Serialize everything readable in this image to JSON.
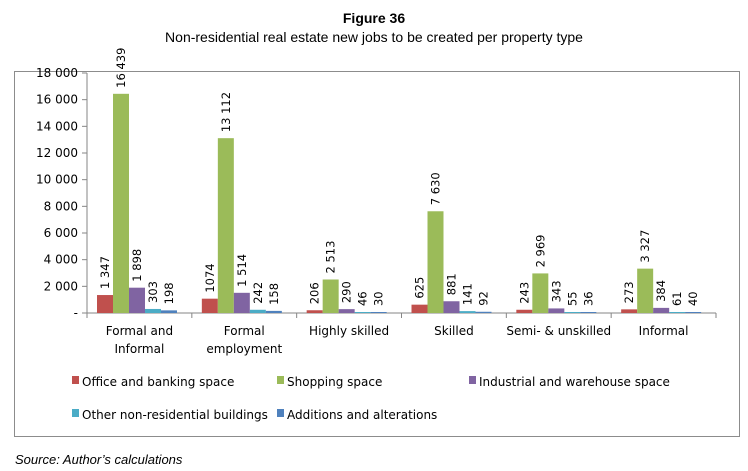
{
  "figure": {
    "number_label": "Figure 36",
    "source": "Source: Author’s calculations"
  },
  "chart_data": {
    "type": "bar",
    "title": "Non-residential real estate new jobs to be created per property type",
    "xlabel": "",
    "ylabel": "",
    "ylim": [
      0,
      18000
    ],
    "yticks": [
      0,
      2000,
      4000,
      6000,
      8000,
      10000,
      12000,
      14000,
      16000,
      18000
    ],
    "ytick_labels": [
      "-",
      "2 000",
      "4 000",
      "6 000",
      "8 000",
      "10 000",
      "12 000",
      "14 000",
      "16 000",
      "18 000"
    ],
    "grid": false,
    "legend_position": "bottom",
    "categories": [
      [
        "Formal and",
        "Informal"
      ],
      [
        "Formal",
        "employment"
      ],
      [
        "Highly skilled"
      ],
      [
        "Skilled"
      ],
      [
        "Semi- & unskilled"
      ],
      [
        "Informal"
      ]
    ],
    "series": [
      {
        "name": "Office and banking space",
        "color": "#c0504d",
        "values": [
          1347,
          1074,
          206,
          625,
          243,
          273
        ],
        "labels": [
          "1 347",
          "1074",
          "206",
          "625",
          "243",
          "273"
        ]
      },
      {
        "name": "Shopping space",
        "color": "#9bbb59",
        "values": [
          16439,
          13112,
          2513,
          7630,
          2969,
          3327
        ],
        "labels": [
          "16 439",
          "13 112",
          "2 513",
          "7 630",
          "2 969",
          "3 327"
        ]
      },
      {
        "name": "Industrial and warehouse space",
        "color": "#8064a2",
        "values": [
          1898,
          1514,
          290,
          881,
          343,
          384
        ],
        "labels": [
          "1 898",
          "1 514",
          "290",
          "881",
          "343",
          "384"
        ]
      },
      {
        "name": "Other non-residential buildings",
        "color": "#4bacc6",
        "values": [
          303,
          242,
          46,
          141,
          55,
          61
        ],
        "labels": [
          "303",
          "242",
          "46",
          "141",
          "55",
          "61"
        ]
      },
      {
        "name": "Additions and alterations",
        "color": "#4f81bd",
        "values": [
          198,
          158,
          30,
          92,
          36,
          40
        ],
        "labels": [
          "198",
          "158",
          "30",
          "92",
          "36",
          "40"
        ]
      }
    ]
  }
}
